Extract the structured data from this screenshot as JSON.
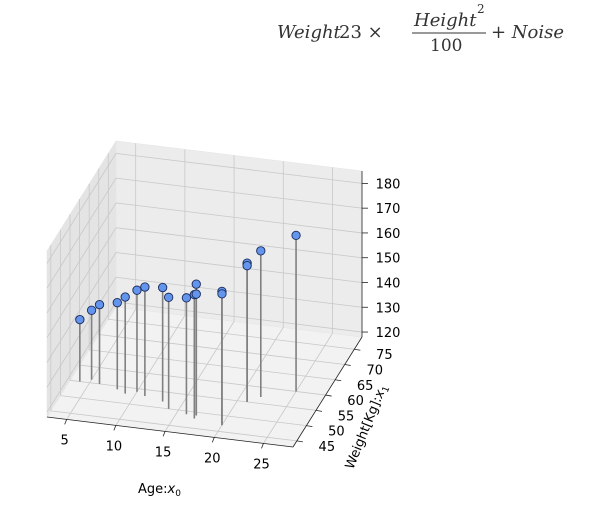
{
  "equation": {
    "lhs": "Weight",
    "coef": "23 ×",
    "numerator": "Height",
    "exponent": "2",
    "denominator": "100",
    "tail": "+ Noise"
  },
  "chart_data": {
    "type": "scatter",
    "projection": "3d",
    "stems": true,
    "marker_color": "#6495ed",
    "marker_edge": "#1a2a5a",
    "stem_color": "#808080",
    "grid": true,
    "xlabel_main": "Age:",
    "xlabel_sub": "0",
    "ylabel_main": "Weight[Kg]:",
    "ylabel_sub": "1",
    "xlim": [
      3,
      28
    ],
    "ylim": [
      43,
      79
    ],
    "zlim": [
      118,
      185
    ],
    "xticks": [
      5,
      10,
      15,
      20,
      25
    ],
    "yticks": [
      45,
      50,
      55,
      60,
      65,
      70,
      75
    ],
    "zticks": [
      120,
      130,
      140,
      150,
      160,
      170,
      180
    ],
    "points": [
      {
        "x": 4,
        "y": 55,
        "z": 143
      },
      {
        "x": 5,
        "y": 56,
        "z": 146
      },
      {
        "x": 6,
        "y": 55,
        "z": 150
      },
      {
        "x": 8,
        "y": 54,
        "z": 153
      },
      {
        "x": 9,
        "y": 53,
        "z": 157
      },
      {
        "x": 10,
        "y": 54,
        "z": 159
      },
      {
        "x": 11,
        "y": 53,
        "z": 162
      },
      {
        "x": 13,
        "y": 52,
        "z": 164
      },
      {
        "x": 14,
        "y": 50,
        "z": 163
      },
      {
        "x": 16,
        "y": 49,
        "z": 165
      },
      {
        "x": 17,
        "y": 48,
        "z": 168
      },
      {
        "x": 17,
        "y": 49,
        "z": 167
      },
      {
        "x": 17,
        "y": 49,
        "z": 171
      },
      {
        "x": 20,
        "y": 47,
        "z": 172
      },
      {
        "x": 20,
        "y": 47,
        "z": 171
      },
      {
        "x": 21,
        "y": 55,
        "z": 174
      },
      {
        "x": 21,
        "y": 55,
        "z": 173
      },
      {
        "x": 22,
        "y": 57,
        "z": 177
      },
      {
        "x": 25,
        "y": 60,
        "z": 181
      }
    ]
  }
}
